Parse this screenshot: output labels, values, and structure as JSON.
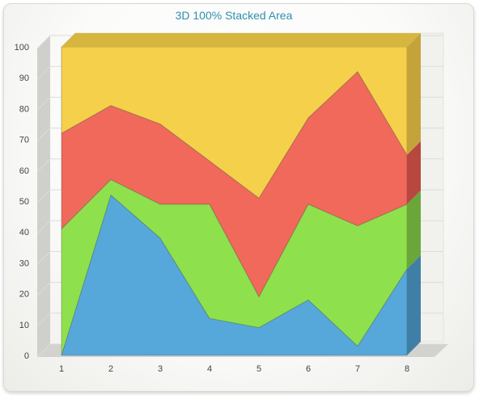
{
  "chart_data": {
    "type": "area",
    "title": "3D 100% Stacked Area",
    "stacked": "percent",
    "three_d": true,
    "xlabel": "",
    "ylabel": "",
    "x": [
      1,
      2,
      3,
      4,
      5,
      6,
      7,
      8
    ],
    "ylim": [
      0,
      100
    ],
    "yticks": [
      0,
      10,
      20,
      30,
      40,
      50,
      60,
      70,
      80,
      90,
      100
    ],
    "grid": true,
    "series": [
      {
        "color": "#55a8d9",
        "side_color": "#3f7fa6",
        "values": [
          0,
          52,
          38,
          12,
          9,
          18,
          3,
          28
        ]
      },
      {
        "color": "#8fe04d",
        "side_color": "#6aa63a",
        "values": [
          41,
          5,
          11,
          37,
          10,
          31,
          39,
          21
        ]
      },
      {
        "color": "#f0695a",
        "side_color": "#b8473f",
        "values": [
          31,
          24,
          26,
          14,
          32,
          28,
          50,
          16
        ]
      },
      {
        "color": "#f5d04a",
        "side_color": "#c4a43a",
        "values": [
          28,
          19,
          25,
          37,
          49,
          23,
          8,
          35
        ]
      }
    ],
    "colors": {
      "title": "#2e8fae",
      "top_face": "#d6b63f",
      "wall": "#f1f1ee",
      "floor": "#d2d2cf",
      "grid": "#dcdcd8"
    }
  }
}
